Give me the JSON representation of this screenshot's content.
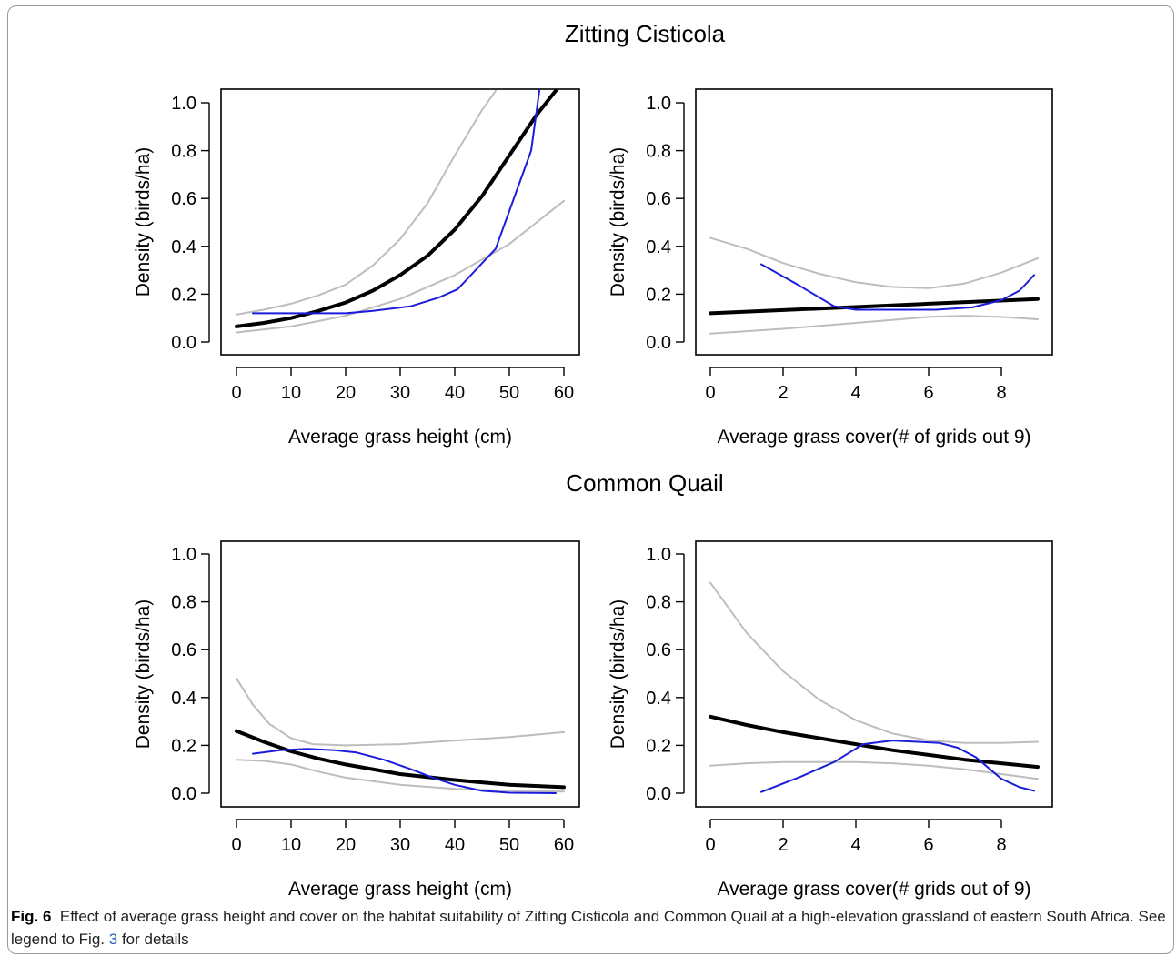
{
  "chart_data": [
    {
      "type": "line",
      "group_title": "Zitting Cisticola",
      "xlabel": "Average grass height (cm)",
      "ylabel": "Density (birds/ha)",
      "xlim": [
        0,
        60
      ],
      "ylim": [
        0,
        1.0
      ],
      "xticks": [
        0,
        10,
        20,
        30,
        40,
        50,
        60
      ],
      "yticks": [
        "0.0",
        "0.2",
        "0.4",
        "0.6",
        "0.8",
        "1.0"
      ],
      "series": [
        {
          "role": "upper",
          "color": "#bdbdbd",
          "width": 2,
          "x": [
            0,
            5,
            10,
            15,
            20,
            25,
            30,
            35,
            40,
            45,
            47.5
          ],
          "y": [
            0.115,
            0.135,
            0.16,
            0.195,
            0.24,
            0.32,
            0.43,
            0.58,
            0.78,
            0.97,
            1.05
          ]
        },
        {
          "role": "fit",
          "color": "#000000",
          "width": 4,
          "x": [
            0,
            5,
            10,
            15,
            20,
            25,
            30,
            35,
            40,
            45,
            50,
            55,
            58.5
          ],
          "y": [
            0.065,
            0.08,
            0.1,
            0.13,
            0.165,
            0.215,
            0.28,
            0.36,
            0.47,
            0.61,
            0.78,
            0.95,
            1.05
          ]
        },
        {
          "role": "lower",
          "color": "#bdbdbd",
          "width": 2,
          "x": [
            0,
            10,
            20,
            30,
            40,
            50,
            60
          ],
          "y": [
            0.04,
            0.065,
            0.11,
            0.18,
            0.28,
            0.41,
            0.59
          ]
        },
        {
          "role": "observed",
          "color": "#1c1cdc",
          "width": 2,
          "x": [
            3,
            10,
            20,
            25,
            32,
            37,
            40.5,
            47.5,
            54,
            55.5
          ],
          "y": [
            0.12,
            0.12,
            0.12,
            0.13,
            0.15,
            0.185,
            0.22,
            0.39,
            0.8,
            1.05
          ]
        }
      ]
    },
    {
      "type": "line",
      "group_title": "Zitting Cisticola",
      "xlabel": "Average grass cover(# of grids out 9)",
      "ylabel": "Density (birds/ha)",
      "xlim": [
        0,
        9
      ],
      "ylim": [
        0,
        1.0
      ],
      "xticks": [
        0,
        2,
        4,
        6,
        8
      ],
      "yticks": [
        "0.0",
        "0.2",
        "0.4",
        "0.6",
        "0.8",
        "1.0"
      ],
      "series": [
        {
          "role": "upper",
          "color": "#bdbdbd",
          "width": 2,
          "x": [
            0,
            1,
            2,
            3,
            4,
            5,
            6,
            7,
            8,
            9
          ],
          "y": [
            0.435,
            0.39,
            0.33,
            0.285,
            0.25,
            0.23,
            0.225,
            0.245,
            0.29,
            0.35
          ]
        },
        {
          "role": "fit",
          "color": "#000000",
          "width": 4,
          "x": [
            0,
            3,
            6,
            9
          ],
          "y": [
            0.12,
            0.14,
            0.16,
            0.18
          ]
        },
        {
          "role": "lower",
          "color": "#bdbdbd",
          "width": 2,
          "x": [
            0,
            2,
            4,
            6,
            7,
            8,
            9
          ],
          "y": [
            0.035,
            0.055,
            0.08,
            0.105,
            0.11,
            0.105,
            0.095
          ]
        },
        {
          "role": "observed",
          "color": "#1c1cdc",
          "width": 2,
          "x": [
            1.4,
            2.4,
            3.4,
            4,
            5,
            6.2,
            7.2,
            8,
            8.5,
            8.9
          ],
          "y": [
            0.325,
            0.24,
            0.15,
            0.135,
            0.135,
            0.135,
            0.145,
            0.175,
            0.215,
            0.28
          ]
        }
      ]
    },
    {
      "type": "line",
      "group_title": "Common Quail",
      "xlabel": "Average grass height (cm)",
      "ylabel": "Density (birds/ha)",
      "xlim": [
        0,
        60
      ],
      "ylim": [
        0,
        1.0
      ],
      "xticks": [
        0,
        10,
        20,
        30,
        40,
        50,
        60
      ],
      "yticks": [
        "0.0",
        "0.2",
        "0.4",
        "0.6",
        "0.8",
        "1.0"
      ],
      "series": [
        {
          "role": "upper",
          "color": "#bdbdbd",
          "width": 2,
          "x": [
            0,
            3,
            6,
            10,
            14,
            20,
            30,
            40,
            50,
            60
          ],
          "y": [
            0.48,
            0.37,
            0.29,
            0.23,
            0.205,
            0.2,
            0.205,
            0.22,
            0.235,
            0.255
          ]
        },
        {
          "role": "fit",
          "color": "#000000",
          "width": 4,
          "x": [
            0,
            5,
            10,
            15,
            20,
            30,
            40,
            50,
            60
          ],
          "y": [
            0.26,
            0.215,
            0.175,
            0.145,
            0.12,
            0.08,
            0.055,
            0.035,
            0.025
          ]
        },
        {
          "role": "lower",
          "color": "#bdbdbd",
          "width": 2,
          "x": [
            0,
            5,
            10,
            15,
            20,
            30,
            40,
            50,
            60
          ],
          "y": [
            0.14,
            0.135,
            0.12,
            0.09,
            0.065,
            0.035,
            0.018,
            0.01,
            0.007
          ]
        },
        {
          "role": "observed",
          "color": "#1c1cdc",
          "width": 2,
          "x": [
            3,
            8,
            13,
            18,
            22,
            27,
            32,
            36,
            40,
            45,
            50,
            58.5
          ],
          "y": [
            0.165,
            0.18,
            0.185,
            0.18,
            0.17,
            0.14,
            0.1,
            0.065,
            0.035,
            0.01,
            0.002,
            0.0
          ]
        }
      ]
    },
    {
      "type": "line",
      "group_title": "Common Quail",
      "xlabel": "Average grass cover(# grids out of 9)",
      "ylabel": "Density (birds/ha)",
      "xlim": [
        0,
        9
      ],
      "ylim": [
        0,
        1.0
      ],
      "xticks": [
        0,
        2,
        4,
        6,
        8
      ],
      "yticks": [
        "0.0",
        "0.2",
        "0.4",
        "0.6",
        "0.8",
        "1.0"
      ],
      "series": [
        {
          "role": "upper",
          "color": "#bdbdbd",
          "width": 2,
          "x": [
            0,
            1,
            2,
            3,
            4,
            5,
            6,
            7,
            8,
            9
          ],
          "y": [
            0.88,
            0.67,
            0.51,
            0.39,
            0.305,
            0.25,
            0.22,
            0.21,
            0.21,
            0.215
          ]
        },
        {
          "role": "fit",
          "color": "#000000",
          "width": 4,
          "x": [
            0,
            1,
            2,
            3,
            4,
            5,
            6,
            7,
            8,
            9
          ],
          "y": [
            0.32,
            0.285,
            0.255,
            0.23,
            0.205,
            0.18,
            0.16,
            0.14,
            0.125,
            0.11
          ]
        },
        {
          "role": "lower",
          "color": "#bdbdbd",
          "width": 2,
          "x": [
            0,
            1,
            2,
            3,
            4,
            5,
            6,
            7,
            8,
            9
          ],
          "y": [
            0.115,
            0.125,
            0.13,
            0.13,
            0.13,
            0.125,
            0.115,
            0.1,
            0.08,
            0.06
          ]
        },
        {
          "role": "observed",
          "color": "#1c1cdc",
          "width": 2,
          "x": [
            1.4,
            2.5,
            3.4,
            4.2,
            5,
            5.7,
            6.3,
            6.8,
            7.3,
            8,
            8.5,
            8.9
          ],
          "y": [
            0.005,
            0.07,
            0.13,
            0.205,
            0.22,
            0.215,
            0.21,
            0.19,
            0.15,
            0.06,
            0.025,
            0.01
          ]
        }
      ]
    }
  ],
  "figure": {
    "titles": [
      "Zitting Cisticola",
      "Common Quail"
    ]
  },
  "caption": {
    "figno": "Fig. 6",
    "text_before_ref": "Effect of average grass height and cover on the habitat suitability of Zitting Cisticola and Common Quail at a high-elevation grassland of eastern South Africa. See legend to Fig. ",
    "ref": "3",
    "text_after_ref": " for details"
  }
}
